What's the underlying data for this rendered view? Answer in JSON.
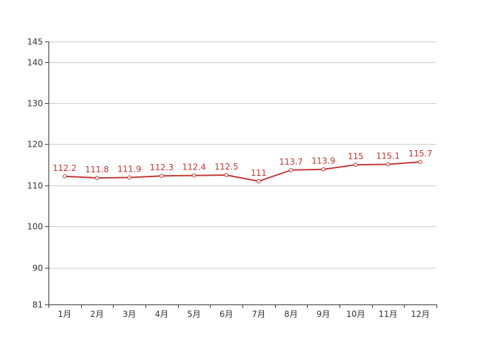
{
  "chart_data": {
    "type": "line",
    "categories": [
      "1月",
      "2月",
      "3月",
      "4月",
      "5月",
      "6月",
      "7月",
      "8月",
      "9月",
      "10月",
      "11月",
      "12月"
    ],
    "series": [
      {
        "values": [
          112.2,
          111.8,
          111.9,
          112.3,
          112.4,
          112.5,
          111,
          113.7,
          113.9,
          115,
          115.1,
          115.7
        ],
        "labels": [
          "112.2",
          "111.8",
          "111.9",
          "112.3",
          "112.4",
          "112.5",
          "111",
          "113.7",
          "113.9",
          "115",
          "115.1",
          "115.7"
        ],
        "color": "#c23531"
      }
    ],
    "yticks": [
      81,
      90,
      100,
      110,
      120,
      130,
      140,
      145
    ],
    "ylim": [
      81,
      145
    ],
    "grid": true,
    "legend": "none"
  }
}
